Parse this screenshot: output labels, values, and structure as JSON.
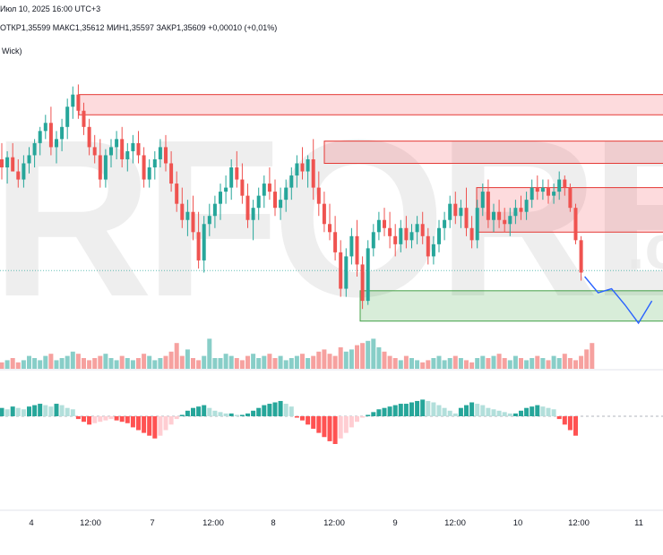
{
  "header": {
    "date_text": "Июл 10, 2025 16:00 UTC+3",
    "ohlc_text": "ОТКР1,35599  МАКС1,35612  МИН1,35597  ЗАКР1,35609  +0,00010 (+0,01%)",
    "indicator_label": "Wick)"
  },
  "watermark": {
    "text": "RFOREX",
    "suffix": ".c"
  },
  "colors": {
    "up": "#26a69a",
    "down": "#ef5350",
    "resistance_fill": "rgba(242,54,69,0.18)",
    "resistance_border": "#e53935",
    "support_fill": "rgba(76,175,80,0.22)",
    "support_border": "#43a047",
    "projection": "#2962ff",
    "watermark": "#e6e6e6"
  },
  "chart_data": {
    "type": "candlestick",
    "price_range": [
      1.3525,
      1.366
    ],
    "x_labels": [
      "4",
      "12:00",
      "7",
      "12:00",
      "8",
      "12:00",
      "9",
      "12:00",
      "10",
      "12:00",
      "11"
    ],
    "candles": [
      [
        1.361,
        1.3618,
        1.36,
        1.3606
      ],
      [
        1.3606,
        1.3614,
        1.3598,
        1.3611
      ],
      [
        1.3611,
        1.3618,
        1.3604,
        1.3604
      ],
      [
        1.3604,
        1.361,
        1.3596,
        1.36
      ],
      [
        1.36,
        1.3612,
        1.3596,
        1.3608
      ],
      [
        1.3608,
        1.3616,
        1.3603,
        1.3612
      ],
      [
        1.3612,
        1.362,
        1.3606,
        1.3618
      ],
      [
        1.3618,
        1.3626,
        1.3612,
        1.3624
      ],
      [
        1.3624,
        1.3632,
        1.362,
        1.3628
      ],
      [
        1.3628,
        1.3636,
        1.3612,
        1.3616
      ],
      [
        1.3616,
        1.3624,
        1.3608,
        1.362
      ],
      [
        1.362,
        1.363,
        1.3614,
        1.3626
      ],
      [
        1.3626,
        1.364,
        1.362,
        1.3636
      ],
      [
        1.3636,
        1.3646,
        1.363,
        1.3642
      ],
      [
        1.3642,
        1.3647,
        1.363,
        1.3634
      ],
      [
        1.3634,
        1.3638,
        1.3622,
        1.3626
      ],
      [
        1.3626,
        1.363,
        1.3612,
        1.3616
      ],
      [
        1.3616,
        1.3622,
        1.3608,
        1.3612
      ],
      [
        1.3612,
        1.362,
        1.3596,
        1.36
      ],
      [
        1.36,
        1.3615,
        1.3596,
        1.3612
      ],
      [
        1.3612,
        1.362,
        1.3606,
        1.3616
      ],
      [
        1.3616,
        1.3624,
        1.361,
        1.362
      ],
      [
        1.362,
        1.3626,
        1.3606,
        1.361
      ],
      [
        1.361,
        1.3618,
        1.3604,
        1.3614
      ],
      [
        1.3614,
        1.3622,
        1.3608,
        1.3618
      ],
      [
        1.3618,
        1.3624,
        1.3608,
        1.3612
      ],
      [
        1.3612,
        1.3616,
        1.3596,
        1.36
      ],
      [
        1.36,
        1.361,
        1.3596,
        1.3606
      ],
      [
        1.3606,
        1.3614,
        1.36,
        1.361
      ],
      [
        1.361,
        1.362,
        1.3606,
        1.3616
      ],
      [
        1.3616,
        1.3622,
        1.3604,
        1.3608
      ],
      [
        1.3608,
        1.3614,
        1.3594,
        1.3598
      ],
      [
        1.3598,
        1.3604,
        1.3584,
        1.3588
      ],
      [
        1.3588,
        1.3596,
        1.3576,
        1.358
      ],
      [
        1.358,
        1.359,
        1.3572,
        1.3584
      ],
      [
        1.3584,
        1.3592,
        1.357,
        1.3574
      ],
      [
        1.3574,
        1.3584,
        1.3556,
        1.356
      ],
      [
        1.356,
        1.3582,
        1.3554,
        1.3578
      ],
      [
        1.3578,
        1.3588,
        1.3572,
        1.3582
      ],
      [
        1.3582,
        1.3592,
        1.3576,
        1.3588
      ],
      [
        1.3588,
        1.3598,
        1.358,
        1.3594
      ],
      [
        1.3594,
        1.3602,
        1.3588,
        1.3596
      ],
      [
        1.3596,
        1.361,
        1.359,
        1.3606
      ],
      [
        1.3606,
        1.3614,
        1.3596,
        1.36
      ],
      [
        1.36,
        1.3608,
        1.3588,
        1.3592
      ],
      [
        1.3592,
        1.3598,
        1.3576,
        1.358
      ],
      [
        1.358,
        1.359,
        1.357,
        1.3586
      ],
      [
        1.3586,
        1.3596,
        1.358,
        1.3592
      ],
      [
        1.3592,
        1.3602,
        1.3586,
        1.3598
      ],
      [
        1.3598,
        1.3606,
        1.359,
        1.3594
      ],
      [
        1.3594,
        1.36,
        1.3582,
        1.3586
      ],
      [
        1.3586,
        1.3596,
        1.358,
        1.359
      ],
      [
        1.359,
        1.36,
        1.3584,
        1.3596
      ],
      [
        1.3596,
        1.3606,
        1.359,
        1.3602
      ],
      [
        1.3602,
        1.3612,
        1.3596,
        1.3608
      ],
      [
        1.3608,
        1.3616,
        1.36,
        1.3604
      ],
      [
        1.3604,
        1.3612,
        1.3596,
        1.361
      ],
      [
        1.361,
        1.362,
        1.359,
        1.3596
      ],
      [
        1.3596,
        1.3604,
        1.3582,
        1.3588
      ],
      [
        1.3588,
        1.3594,
        1.3574,
        1.3578
      ],
      [
        1.3578,
        1.3588,
        1.357,
        1.3574
      ],
      [
        1.3574,
        1.3582,
        1.356,
        1.3564
      ],
      [
        1.3564,
        1.357,
        1.3542,
        1.3546
      ],
      [
        1.3546,
        1.3566,
        1.3542,
        1.3562
      ],
      [
        1.3562,
        1.3576,
        1.3558,
        1.3572
      ],
      [
        1.3572,
        1.358,
        1.3552,
        1.3558
      ],
      [
        1.3558,
        1.3562,
        1.3536,
        1.354
      ],
      [
        1.354,
        1.357,
        1.3538,
        1.3566
      ],
      [
        1.3566,
        1.3578,
        1.3562,
        1.3574
      ],
      [
        1.3574,
        1.3584,
        1.357,
        1.358
      ],
      [
        1.358,
        1.3586,
        1.3572,
        1.3576
      ],
      [
        1.3576,
        1.3584,
        1.3566,
        1.3572
      ],
      [
        1.3572,
        1.3578,
        1.3562,
        1.3568
      ],
      [
        1.3568,
        1.358,
        1.3564,
        1.3576
      ],
      [
        1.3576,
        1.3582,
        1.3566,
        1.357
      ],
      [
        1.357,
        1.3578,
        1.3566,
        1.3574
      ],
      [
        1.3574,
        1.3582,
        1.3568,
        1.3578
      ],
      [
        1.3578,
        1.3584,
        1.3568,
        1.3572
      ],
      [
        1.3572,
        1.3576,
        1.3558,
        1.3562
      ],
      [
        1.3562,
        1.3572,
        1.3558,
        1.3568
      ],
      [
        1.3568,
        1.358,
        1.3564,
        1.3576
      ],
      [
        1.3576,
        1.3584,
        1.357,
        1.358
      ],
      [
        1.358,
        1.3592,
        1.3576,
        1.3588
      ],
      [
        1.3588,
        1.3594,
        1.3578,
        1.3582
      ],
      [
        1.3582,
        1.359,
        1.3576,
        1.3586
      ],
      [
        1.3586,
        1.3596,
        1.3572,
        1.3576
      ],
      [
        1.3576,
        1.3582,
        1.3566,
        1.357
      ],
      [
        1.357,
        1.359,
        1.3566,
        1.3586
      ],
      [
        1.3586,
        1.3598,
        1.3582,
        1.3594
      ],
      [
        1.3594,
        1.36,
        1.3576,
        1.358
      ],
      [
        1.358,
        1.3588,
        1.3574,
        1.3584
      ],
      [
        1.3584,
        1.359,
        1.3576,
        1.358
      ],
      [
        1.358,
        1.3586,
        1.3574,
        1.3578
      ],
      [
        1.3578,
        1.3586,
        1.3572,
        1.3582
      ],
      [
        1.3582,
        1.359,
        1.3578,
        1.3586
      ],
      [
        1.3586,
        1.3592,
        1.358,
        1.3584
      ],
      [
        1.3584,
        1.3594,
        1.358,
        1.359
      ],
      [
        1.359,
        1.36,
        1.3586,
        1.3596
      ],
      [
        1.3596,
        1.3602,
        1.359,
        1.3594
      ],
      [
        1.3594,
        1.36,
        1.359,
        1.3596
      ],
      [
        1.3596,
        1.36,
        1.3588,
        1.3592
      ],
      [
        1.3592,
        1.3598,
        1.3588,
        1.3594
      ],
      [
        1.3594,
        1.3604,
        1.359,
        1.36
      ],
      [
        1.36,
        1.3602,
        1.3592,
        1.3596
      ],
      [
        1.3596,
        1.3598,
        1.3584,
        1.3586
      ],
      [
        1.3586,
        1.3588,
        1.3568,
        1.357
      ],
      [
        1.357,
        1.3572,
        1.355,
        1.3554
      ]
    ],
    "volume": [
      3,
      4,
      5,
      3,
      4,
      6,
      5,
      4,
      6,
      7,
      4,
      5,
      6,
      8,
      7,
      5,
      4,
      5,
      6,
      7,
      5,
      4,
      6,
      5,
      4,
      5,
      7,
      6,
      4,
      5,
      6,
      8,
      12,
      6,
      9,
      5,
      4,
      6,
      14,
      5,
      5,
      7,
      6,
      5,
      4,
      6,
      7,
      5,
      6,
      7,
      5,
      6,
      4,
      5,
      6,
      7,
      5,
      6,
      8,
      9,
      7,
      6,
      10,
      8,
      9,
      11,
      12,
      13,
      14,
      10,
      8,
      6,
      5,
      4,
      6,
      5,
      4,
      3,
      4,
      5,
      6,
      4,
      5,
      6,
      5,
      4,
      3,
      5,
      6,
      5,
      6,
      7,
      5,
      4,
      6,
      5,
      4,
      5,
      6,
      5,
      4,
      6,
      5,
      7,
      5,
      4,
      6,
      9,
      12
    ],
    "oscillator": [
      6,
      5,
      7,
      6,
      5,
      7,
      8,
      9,
      8,
      7,
      9,
      8,
      6,
      5,
      -2,
      -4,
      -6,
      -5,
      -4,
      -3,
      -2,
      -3,
      -4,
      -5,
      -8,
      -10,
      -12,
      -14,
      -16,
      -14,
      -10,
      -6,
      -2,
      1,
      4,
      6,
      7,
      8,
      6,
      4,
      3,
      2,
      2,
      1,
      1,
      2,
      4,
      6,
      8,
      9,
      10,
      11,
      9,
      7,
      -1,
      -3,
      -6,
      -9,
      -12,
      -15,
      -18,
      -20,
      -16,
      -12,
      -8,
      -4,
      -1,
      1,
      3,
      5,
      6,
      7,
      8,
      9,
      9,
      10,
      11,
      12,
      11,
      10,
      8,
      6,
      4,
      2,
      6,
      8,
      10,
      9,
      8,
      6,
      5,
      4,
      3,
      2,
      2,
      4,
      6,
      7,
      8,
      7,
      6,
      5,
      -2,
      -6,
      -10,
      -14
    ],
    "resistance_zones": [
      [
        1.3632,
        1.3642
      ],
      [
        1.3608,
        1.3619
      ],
      [
        1.3574,
        1.3596
      ]
    ],
    "support_zone": [
      1.353,
      1.3545
    ],
    "current_price": 1.3555,
    "projection": [
      1.3552,
      1.3544,
      1.3546,
      1.3538,
      1.3529,
      1.354
    ]
  }
}
